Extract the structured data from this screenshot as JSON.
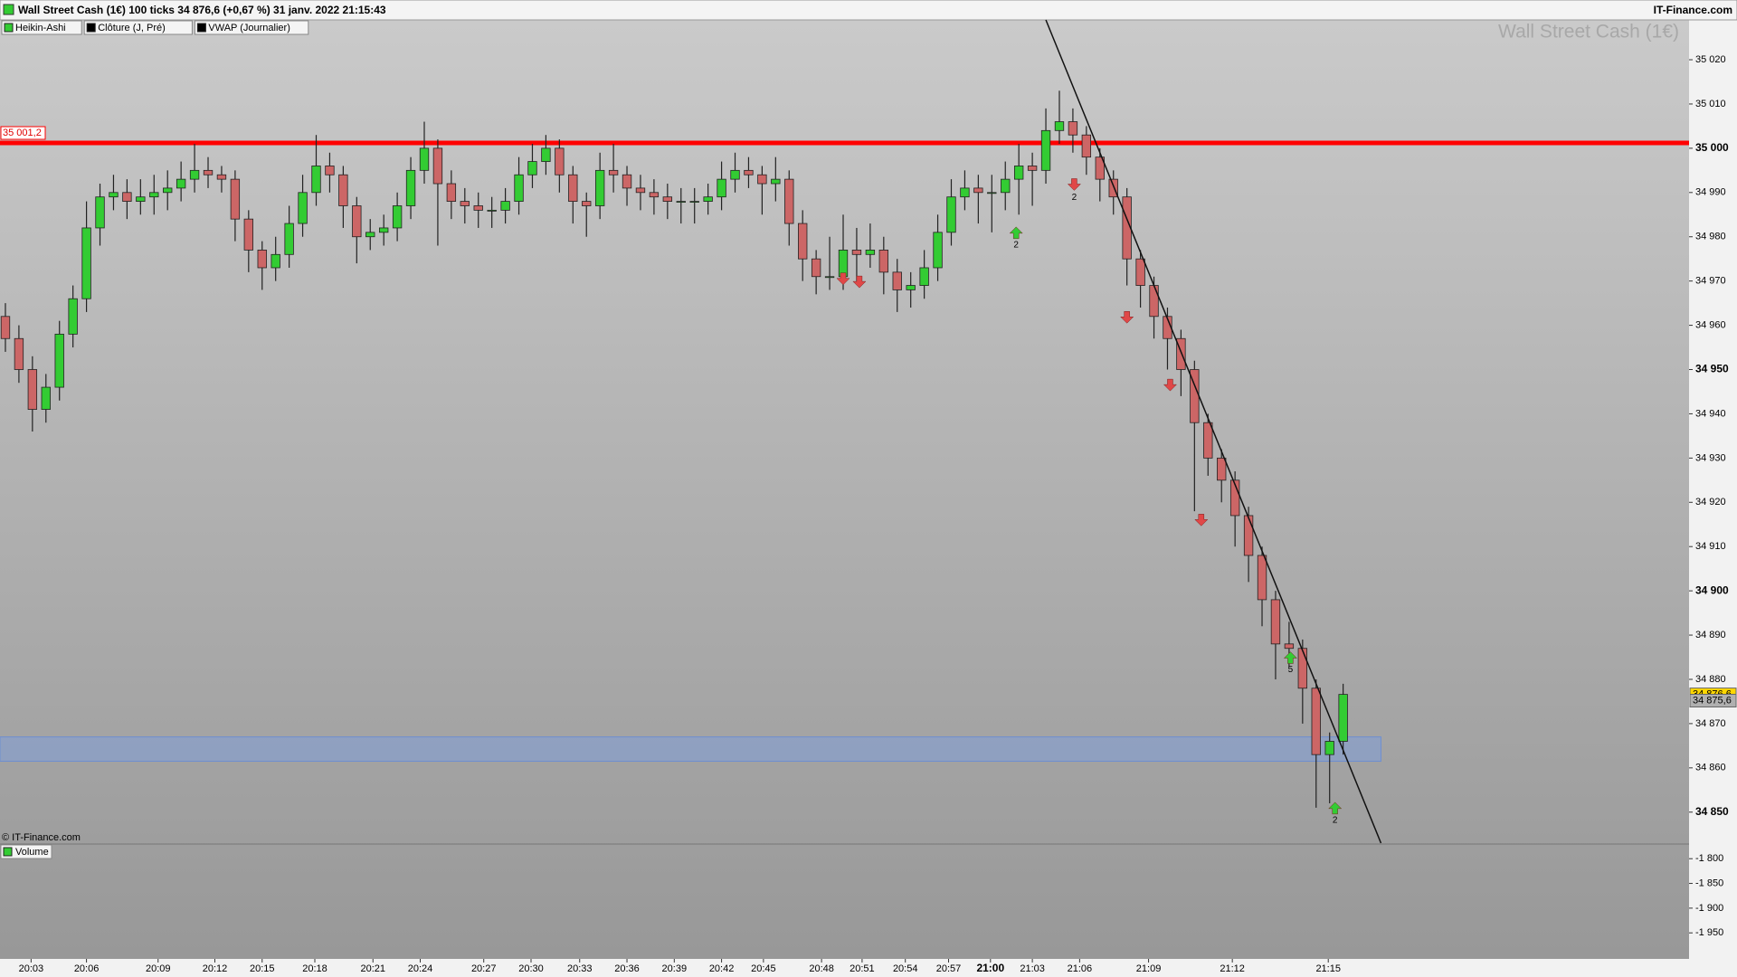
{
  "header": {
    "title": "Wall Street Cash (1€) 100 ticks 34 876,6 (+0,67 %) 31 janv. 2022 21:15:43",
    "source": "IT-Finance.com"
  },
  "legend": [
    {
      "name": "Heikin-Ashi",
      "color": "#33cc33"
    },
    {
      "name": "Clôture (J, Pré)",
      "color": "#000000"
    },
    {
      "name": "VWAP (Journalier)",
      "color": "#000000"
    }
  ],
  "watermark": "Wall Street Cash (1€)",
  "copyright": "© IT-Finance.com",
  "chart_data": {
    "type": "candlestick",
    "up_color": "#33cc33",
    "down_color": "#cc6666",
    "xlim": [
      -0.4,
      124.6
    ],
    "xticks": [
      {
        "value": 1.9,
        "label": "20:03"
      },
      {
        "value": 6.0,
        "label": "20:06"
      },
      {
        "value": 11.3,
        "label": "20:09"
      },
      {
        "value": 15.5,
        "label": "20:12"
      },
      {
        "value": 19.0,
        "label": "20:15"
      },
      {
        "value": 22.9,
        "label": "20:18"
      },
      {
        "value": 27.2,
        "label": "20:21"
      },
      {
        "value": 30.7,
        "label": "20:24"
      },
      {
        "value": 35.4,
        "label": "20:27"
      },
      {
        "value": 38.9,
        "label": "20:30"
      },
      {
        "value": 42.5,
        "label": "20:33"
      },
      {
        "value": 46.0,
        "label": "20:36"
      },
      {
        "value": 49.5,
        "label": "20:39"
      },
      {
        "value": 53.0,
        "label": "20:42"
      },
      {
        "value": 56.1,
        "label": "20:45"
      },
      {
        "value": 60.4,
        "label": "20:48"
      },
      {
        "value": 63.4,
        "label": "20:51"
      },
      {
        "value": 66.6,
        "label": "20:54"
      },
      {
        "value": 69.8,
        "label": "20:57"
      },
      {
        "value": 72.9,
        "label": "21:00",
        "bold": true
      },
      {
        "value": 76.0,
        "label": "21:03"
      },
      {
        "value": 79.5,
        "label": "21:06"
      },
      {
        "value": 84.6,
        "label": "21:09"
      },
      {
        "value": 90.8,
        "label": "21:12"
      },
      {
        "value": 97.9,
        "label": "21:15"
      }
    ],
    "ylim": [
      34843,
      35029
    ],
    "yticks": [
      {
        "value": 34850,
        "label": "34 850",
        "bold": true
      },
      {
        "value": 34860,
        "label": "34 860"
      },
      {
        "value": 34870,
        "label": "34 870"
      },
      {
        "value": 34880,
        "label": "34 880"
      },
      {
        "value": 34890,
        "label": "34 890"
      },
      {
        "value": 34900,
        "label": "34 900",
        "bold": true
      },
      {
        "value": 34910,
        "label": "34 910"
      },
      {
        "value": 34920,
        "label": "34 920"
      },
      {
        "value": 34930,
        "label": "34 930"
      },
      {
        "value": 34940,
        "label": "34 940"
      },
      {
        "value": 34950,
        "label": "34 950",
        "bold": true
      },
      {
        "value": 34960,
        "label": "34 960"
      },
      {
        "value": 34970,
        "label": "34 970"
      },
      {
        "value": 34980,
        "label": "34 980"
      },
      {
        "value": 34990,
        "label": "34 990"
      },
      {
        "value": 35000,
        "label": "35 000",
        "bold": true
      },
      {
        "value": 35010,
        "label": "35 010"
      },
      {
        "value": 35020,
        "label": "35 020"
      }
    ],
    "candles": [
      [
        34962,
        34965,
        34954,
        34957
      ],
      [
        34957,
        34960,
        34947,
        34950
      ],
      [
        34950,
        34953,
        34936,
        34941
      ],
      [
        34941,
        34949,
        34938,
        34946
      ],
      [
        34946,
        34961,
        34943,
        34958
      ],
      [
        34958,
        34969,
        34955,
        34966
      ],
      [
        34966,
        34988,
        34963,
        34982
      ],
      [
        34982,
        34992,
        34978,
        34989
      ],
      [
        34989,
        34994,
        34986,
        34990
      ],
      [
        34990,
        34993,
        34984,
        34988
      ],
      [
        34988,
        34993,
        34985,
        34989
      ],
      [
        34989,
        34994,
        34985,
        34990
      ],
      [
        34990,
        34995,
        34986,
        34991
      ],
      [
        34991,
        34997,
        34988,
        34993
      ],
      [
        34993,
        35001,
        34990,
        34995
      ],
      [
        34995,
        34998,
        34991,
        34994
      ],
      [
        34994,
        34996,
        34990,
        34993
      ],
      [
        34993,
        34995,
        34979,
        34984
      ],
      [
        34984,
        34986,
        34972,
        34977
      ],
      [
        34977,
        34979,
        34968,
        34973
      ],
      [
        34973,
        34980,
        34970,
        34976
      ],
      [
        34976,
        34987,
        34973,
        34983
      ],
      [
        34983,
        34994,
        34980,
        34990
      ],
      [
        34990,
        35003,
        34987,
        34996
      ],
      [
        34996,
        34999,
        34990,
        34994
      ],
      [
        34994,
        34996,
        34982,
        34987
      ],
      [
        34987,
        34989,
        34974,
        34980
      ],
      [
        34980,
        34984,
        34977,
        34981
      ],
      [
        34981,
        34985,
        34978,
        34982
      ],
      [
        34982,
        34990,
        34979,
        34987
      ],
      [
        34987,
        34998,
        34984,
        34995
      ],
      [
        34995,
        35006,
        34992,
        35000
      ],
      [
        35000,
        35002,
        34978,
        34992
      ],
      [
        34992,
        34995,
        34984,
        34988
      ],
      [
        34988,
        34991,
        34983,
        34987
      ],
      [
        34987,
        34990,
        34982,
        34986
      ],
      [
        34986,
        34989,
        34982,
        34986
      ],
      [
        34986,
        34991,
        34983,
        34988
      ],
      [
        34988,
        34998,
        34985,
        34994
      ],
      [
        34994,
        35001,
        34991,
        34997
      ],
      [
        34997,
        35003,
        34994,
        35000
      ],
      [
        35000,
        35002,
        34990,
        34994
      ],
      [
        34994,
        34996,
        34983,
        34988
      ],
      [
        34988,
        34990,
        34980,
        34987
      ],
      [
        34987,
        34999,
        34984,
        34995
      ],
      [
        34995,
        35001,
        34990,
        34994
      ],
      [
        34994,
        34996,
        34987,
        34991
      ],
      [
        34991,
        34994,
        34986,
        34990
      ],
      [
        34990,
        34993,
        34985,
        34989
      ],
      [
        34989,
        34992,
        34984,
        34988
      ],
      [
        34988,
        34991,
        34983,
        34988
      ],
      [
        34988,
        34991,
        34983,
        34988
      ],
      [
        34988,
        34992,
        34985,
        34989
      ],
      [
        34989,
        34997,
        34986,
        34993
      ],
      [
        34993,
        34999,
        34990,
        34995
      ],
      [
        34995,
        34998,
        34991,
        34994
      ],
      [
        34994,
        34996,
        34985,
        34992
      ],
      [
        34992,
        34998,
        34988,
        34993
      ],
      [
        34993,
        34995,
        34978,
        34983
      ],
      [
        34983,
        34986,
        34970,
        34975
      ],
      [
        34975,
        34977,
        34967,
        34971
      ],
      [
        34971,
        34980,
        34968,
        34971
      ],
      [
        34971,
        34985,
        34968,
        34977
      ],
      [
        34977,
        34982,
        34970,
        34976
      ],
      [
        34976,
        34983,
        34973,
        34977
      ],
      [
        34977,
        34980,
        34967,
        34972
      ],
      [
        34972,
        34975,
        34963,
        34968
      ],
      [
        34968,
        34972,
        34964,
        34969
      ],
      [
        34969,
        34977,
        34966,
        34973
      ],
      [
        34973,
        34985,
        34970,
        34981
      ],
      [
        34981,
        34993,
        34978,
        34989
      ],
      [
        34989,
        34995,
        34986,
        34991
      ],
      [
        34991,
        34994,
        34983,
        34990
      ],
      [
        34990,
        34994,
        34981,
        34990
      ],
      [
        34990,
        34997,
        34986,
        34993
      ],
      [
        34993,
        35001,
        34985,
        34996
      ],
      [
        34996,
        34999,
        34987,
        34995
      ],
      [
        34995,
        35009,
        34992,
        35004
      ],
      [
        35004,
        35013,
        35001,
        35006
      ],
      [
        35006,
        35009,
        34999,
        35003
      ],
      [
        35003,
        35005,
        34994,
        34998
      ],
      [
        34998,
        35000,
        34988,
        34993
      ],
      [
        34993,
        34995,
        34985,
        34989
      ],
      [
        34989,
        34991,
        34969,
        34975
      ],
      [
        34975,
        34977,
        34964,
        34969
      ],
      [
        34969,
        34971,
        34957,
        34962
      ],
      [
        34962,
        34964,
        34950,
        34957
      ],
      [
        34957,
        34959,
        34944,
        34950
      ],
      [
        34950,
        34952,
        34918,
        34938
      ],
      [
        34938,
        34940,
        34926,
        34930
      ],
      [
        34930,
        34932,
        34920,
        34925
      ],
      [
        34925,
        34927,
        34910,
        34917
      ],
      [
        34917,
        34919,
        34902,
        34908
      ],
      [
        34908,
        34910,
        34892,
        34898
      ],
      [
        34898,
        34900,
        34880,
        34888
      ],
      [
        34888,
        34893,
        34883,
        34887
      ],
      [
        34887,
        34889,
        34870,
        34878
      ],
      [
        34878,
        34880,
        34851,
        34863
      ],
      [
        34863,
        34868,
        34852,
        34866
      ],
      [
        34866,
        34879,
        34863,
        34876.6
      ]
    ],
    "resistance": {
      "value": 35001.2,
      "label": "35 001,2",
      "color": "#ff0000"
    },
    "zone": {
      "y": [
        34861.5,
        34867
      ],
      "x": [
        -0.4,
        101.8
      ],
      "color": "#7f9fd8"
    },
    "trendline": {
      "x": [
        77.0,
        101.8
      ],
      "y": [
        35029,
        34843
      ]
    },
    "signals": [
      {
        "kind": "sell",
        "x": 62.0,
        "y": 34970.4
      },
      {
        "kind": "sell",
        "x": 63.2,
        "y": 34969.7
      },
      {
        "kind": "sell",
        "x": 79.1,
        "y": 34991.7,
        "label": "2"
      },
      {
        "kind": "sell",
        "x": 83.0,
        "y": 34961.7
      },
      {
        "kind": "sell",
        "x": 86.2,
        "y": 34946.4
      },
      {
        "kind": "sell",
        "x": 88.5,
        "y": 34915.9
      },
      {
        "kind": "buy",
        "x": 74.8,
        "y": 34981,
        "label": "2"
      },
      {
        "kind": "buy",
        "x": 95.1,
        "y": 34885,
        "label": "5"
      },
      {
        "kind": "buy",
        "x": 98.4,
        "y": 34851,
        "label": "2"
      }
    ],
    "last_prices": [
      {
        "value": 34876.6,
        "label": "34 876,6",
        "color": "#ffd700"
      },
      {
        "value": 34875.6,
        "label": "34 875,6",
        "color": "#b0b0b0"
      }
    ],
    "volume": {
      "label": "Volume",
      "ylim": [
        -1999,
        -1774
      ],
      "yticks": [
        {
          "value": -1800,
          "label": "-1 800"
        },
        {
          "value": -1850,
          "label": "-1 850"
        },
        {
          "value": -1900,
          "label": "-1 900"
        },
        {
          "value": -1950,
          "label": "-1 950"
        }
      ]
    }
  }
}
